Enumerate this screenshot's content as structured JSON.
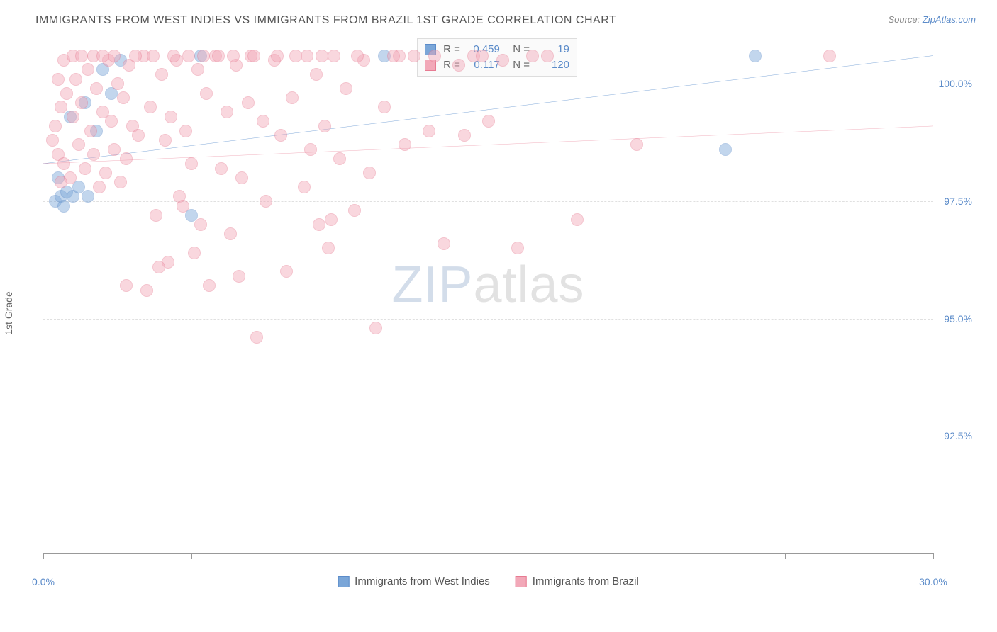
{
  "title": "IMMIGRANTS FROM WEST INDIES VS IMMIGRANTS FROM BRAZIL 1ST GRADE CORRELATION CHART",
  "source_prefix": "Source: ",
  "source_link": "ZipAtlas.com",
  "ylabel": "1st Grade",
  "watermark_a": "ZIP",
  "watermark_b": "atlas",
  "chart": {
    "type": "scatter",
    "xlim": [
      0,
      30
    ],
    "ylim": [
      90,
      101
    ],
    "yticks": [
      92.5,
      95.0,
      97.5,
      100.0
    ],
    "ytick_labels": [
      "92.5%",
      "95.0%",
      "97.5%",
      "100.0%"
    ],
    "xticks": [
      0,
      5,
      10,
      15,
      20,
      25,
      30
    ],
    "xtick_labels": [
      "0.0%",
      "",
      "",
      "",
      "",
      "",
      "30.0%"
    ],
    "background_color": "#ffffff",
    "grid_color": "#e0e0e0",
    "axis_color": "#999999",
    "dot_radius": 9,
    "dot_opacity": 0.45,
    "series": [
      {
        "name": "Immigrants from West Indies",
        "color": "#7aa6d8",
        "border": "#5b8bc9",
        "R": "0.459",
        "N": "19",
        "trend": {
          "y_at_x0": 98.3,
          "y_at_x30": 100.6,
          "color": "#2e6fbf",
          "width": 2
        },
        "points": [
          {
            "x": 0.4,
            "y": 97.5
          },
          {
            "x": 0.6,
            "y": 97.6
          },
          {
            "x": 0.7,
            "y": 97.4
          },
          {
            "x": 0.8,
            "y": 97.7
          },
          {
            "x": 1.0,
            "y": 97.6
          },
          {
            "x": 1.2,
            "y": 97.8
          },
          {
            "x": 1.5,
            "y": 97.6
          },
          {
            "x": 0.9,
            "y": 99.3
          },
          {
            "x": 1.4,
            "y": 99.6
          },
          {
            "x": 2.0,
            "y": 100.3
          },
          {
            "x": 2.3,
            "y": 99.8
          },
          {
            "x": 2.6,
            "y": 100.5
          },
          {
            "x": 5.0,
            "y": 97.2
          },
          {
            "x": 5.3,
            "y": 100.6
          },
          {
            "x": 11.5,
            "y": 100.6
          },
          {
            "x": 23.0,
            "y": 98.6
          },
          {
            "x": 24.0,
            "y": 100.6
          },
          {
            "x": 0.5,
            "y": 98.0
          },
          {
            "x": 1.8,
            "y": 99.0
          }
        ]
      },
      {
        "name": "Immigrants from Brazil",
        "color": "#f2a8b8",
        "border": "#e77b92",
        "R": "0.117",
        "N": "120",
        "trend": {
          "y_at_x0": 98.3,
          "y_at_x30": 99.1,
          "color": "#e77b92",
          "width": 2
        },
        "points": [
          {
            "x": 0.3,
            "y": 98.8
          },
          {
            "x": 0.4,
            "y": 99.1
          },
          {
            "x": 0.5,
            "y": 98.5
          },
          {
            "x": 0.6,
            "y": 99.5
          },
          {
            "x": 0.7,
            "y": 98.3
          },
          {
            "x": 0.8,
            "y": 99.8
          },
          {
            "x": 0.9,
            "y": 98.0
          },
          {
            "x": 1.0,
            "y": 99.3
          },
          {
            "x": 1.1,
            "y": 100.1
          },
          {
            "x": 1.2,
            "y": 98.7
          },
          {
            "x": 1.3,
            "y": 99.6
          },
          {
            "x": 1.4,
            "y": 98.2
          },
          {
            "x": 1.5,
            "y": 100.3
          },
          {
            "x": 1.6,
            "y": 99.0
          },
          {
            "x": 1.7,
            "y": 98.5
          },
          {
            "x": 1.8,
            "y": 99.9
          },
          {
            "x": 1.9,
            "y": 97.8
          },
          {
            "x": 2.0,
            "y": 99.4
          },
          {
            "x": 2.1,
            "y": 98.1
          },
          {
            "x": 2.2,
            "y": 100.5
          },
          {
            "x": 2.3,
            "y": 99.2
          },
          {
            "x": 2.4,
            "y": 98.6
          },
          {
            "x": 2.5,
            "y": 100.0
          },
          {
            "x": 2.6,
            "y": 97.9
          },
          {
            "x": 2.7,
            "y": 99.7
          },
          {
            "x": 2.8,
            "y": 98.4
          },
          {
            "x": 2.9,
            "y": 100.4
          },
          {
            "x": 3.0,
            "y": 99.1
          },
          {
            "x": 3.2,
            "y": 98.9
          },
          {
            "x": 3.4,
            "y": 100.6
          },
          {
            "x": 3.5,
            "y": 95.6
          },
          {
            "x": 3.6,
            "y": 99.5
          },
          {
            "x": 3.8,
            "y": 97.2
          },
          {
            "x": 4.0,
            "y": 100.2
          },
          {
            "x": 4.1,
            "y": 98.8
          },
          {
            "x": 4.2,
            "y": 96.2
          },
          {
            "x": 4.3,
            "y": 99.3
          },
          {
            "x": 4.5,
            "y": 100.5
          },
          {
            "x": 4.6,
            "y": 97.6
          },
          {
            "x": 4.8,
            "y": 99.0
          },
          {
            "x": 5.0,
            "y": 98.3
          },
          {
            "x": 5.2,
            "y": 100.3
          },
          {
            "x": 5.3,
            "y": 97.0
          },
          {
            "x": 5.5,
            "y": 99.8
          },
          {
            "x": 5.6,
            "y": 95.7
          },
          {
            "x": 5.8,
            "y": 100.6
          },
          {
            "x": 6.0,
            "y": 98.2
          },
          {
            "x": 6.2,
            "y": 99.4
          },
          {
            "x": 6.3,
            "y": 96.8
          },
          {
            "x": 6.5,
            "y": 100.4
          },
          {
            "x": 6.7,
            "y": 98.0
          },
          {
            "x": 6.9,
            "y": 99.6
          },
          {
            "x": 7.0,
            "y": 100.6
          },
          {
            "x": 7.2,
            "y": 94.6
          },
          {
            "x": 7.4,
            "y": 99.2
          },
          {
            "x": 7.5,
            "y": 97.5
          },
          {
            "x": 7.8,
            "y": 100.5
          },
          {
            "x": 8.0,
            "y": 98.9
          },
          {
            "x": 8.2,
            "y": 96.0
          },
          {
            "x": 8.4,
            "y": 99.7
          },
          {
            "x": 8.5,
            "y": 100.6
          },
          {
            "x": 8.8,
            "y": 97.8
          },
          {
            "x": 9.0,
            "y": 98.6
          },
          {
            "x": 9.2,
            "y": 100.2
          },
          {
            "x": 9.3,
            "y": 97.0
          },
          {
            "x": 9.5,
            "y": 99.1
          },
          {
            "x": 9.6,
            "y": 96.5
          },
          {
            "x": 9.7,
            "y": 97.1
          },
          {
            "x": 9.8,
            "y": 100.6
          },
          {
            "x": 10.0,
            "y": 98.4
          },
          {
            "x": 10.2,
            "y": 99.9
          },
          {
            "x": 10.5,
            "y": 97.3
          },
          {
            "x": 10.8,
            "y": 100.5
          },
          {
            "x": 11.0,
            "y": 98.1
          },
          {
            "x": 11.2,
            "y": 94.8
          },
          {
            "x": 11.5,
            "y": 99.5
          },
          {
            "x": 12.0,
            "y": 100.6
          },
          {
            "x": 12.2,
            "y": 98.7
          },
          {
            "x": 12.5,
            "y": 100.6
          },
          {
            "x": 13.0,
            "y": 99.0
          },
          {
            "x": 13.5,
            "y": 96.6
          },
          {
            "x": 14.0,
            "y": 100.4
          },
          {
            "x": 14.2,
            "y": 98.9
          },
          {
            "x": 14.5,
            "y": 100.6
          },
          {
            "x": 15.0,
            "y": 99.2
          },
          {
            "x": 15.5,
            "y": 100.5
          },
          {
            "x": 16.0,
            "y": 96.5
          },
          {
            "x": 16.5,
            "y": 100.6
          },
          {
            "x": 17.0,
            "y": 100.6
          },
          {
            "x": 18.0,
            "y": 97.1
          },
          {
            "x": 20.0,
            "y": 98.7
          },
          {
            "x": 26.5,
            "y": 100.6
          },
          {
            "x": 0.5,
            "y": 100.1
          },
          {
            "x": 0.7,
            "y": 100.5
          },
          {
            "x": 1.0,
            "y": 100.6
          },
          {
            "x": 1.3,
            "y": 100.6
          },
          {
            "x": 1.7,
            "y": 100.6
          },
          {
            "x": 2.0,
            "y": 100.6
          },
          {
            "x": 2.4,
            "y": 100.6
          },
          {
            "x": 3.1,
            "y": 100.6
          },
          {
            "x": 3.7,
            "y": 100.6
          },
          {
            "x": 4.4,
            "y": 100.6
          },
          {
            "x": 4.9,
            "y": 100.6
          },
          {
            "x": 5.4,
            "y": 100.6
          },
          {
            "x": 5.9,
            "y": 100.6
          },
          {
            "x": 6.4,
            "y": 100.6
          },
          {
            "x": 7.1,
            "y": 100.6
          },
          {
            "x": 7.9,
            "y": 100.6
          },
          {
            "x": 8.9,
            "y": 100.6
          },
          {
            "x": 9.4,
            "y": 100.6
          },
          {
            "x": 10.6,
            "y": 100.6
          },
          {
            "x": 11.8,
            "y": 100.6
          },
          {
            "x": 13.2,
            "y": 100.6
          },
          {
            "x": 14.8,
            "y": 100.6
          },
          {
            "x": 2.8,
            "y": 95.7
          },
          {
            "x": 3.9,
            "y": 96.1
          },
          {
            "x": 5.1,
            "y": 96.4
          },
          {
            "x": 6.6,
            "y": 95.9
          },
          {
            "x": 4.7,
            "y": 97.4
          },
          {
            "x": 0.6,
            "y": 97.9
          }
        ]
      }
    ]
  },
  "legend_bottom": [
    {
      "label": "Immigrants from West Indies",
      "fill": "#7aa6d8",
      "border": "#5b8bc9"
    },
    {
      "label": "Immigrants from Brazil",
      "fill": "#f2a8b8",
      "border": "#e77b92"
    }
  ]
}
